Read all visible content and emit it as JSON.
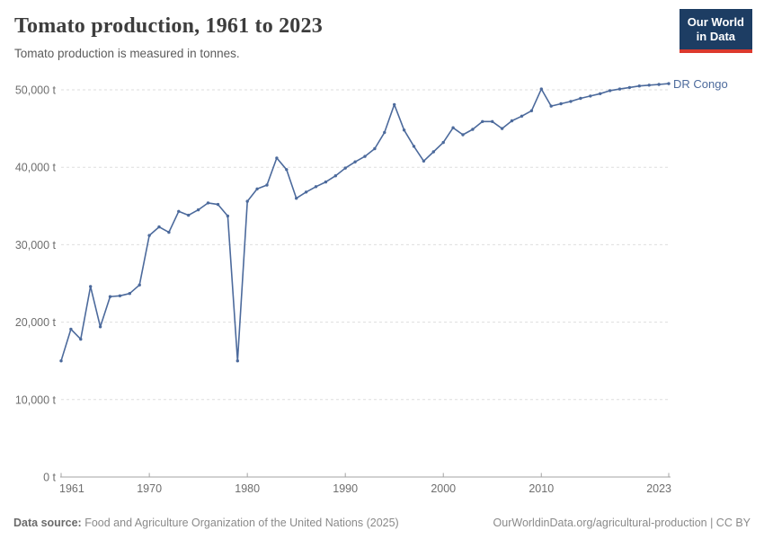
{
  "header": {
    "title": "Tomato production, 1961 to 2023",
    "subtitle": "Tomato production is measured in tonnes."
  },
  "logo": {
    "line1": "Our World",
    "line2": "in Data",
    "bg_color": "#1d3d63",
    "accent_color": "#dc392d"
  },
  "chart_data": {
    "type": "line",
    "title": "Tomato production, 1961 to 2023",
    "subtitle": "Tomato production is measured in tonnes.",
    "unit": "t",
    "grid": "horizontal-dashed",
    "legend_position": "end-of-line",
    "ylim": [
      0,
      50000
    ],
    "xlim": [
      1961,
      2023
    ],
    "x": [
      1961,
      1962,
      1963,
      1964,
      1965,
      1966,
      1967,
      1968,
      1969,
      1970,
      1971,
      1972,
      1973,
      1974,
      1975,
      1976,
      1977,
      1978,
      1979,
      1980,
      1981,
      1982,
      1983,
      1984,
      1985,
      1986,
      1987,
      1988,
      1989,
      1990,
      1991,
      1992,
      1993,
      1994,
      1995,
      1996,
      1997,
      1998,
      1999,
      2000,
      2001,
      2002,
      2003,
      2004,
      2005,
      2006,
      2007,
      2008,
      2009,
      2010,
      2011,
      2012,
      2013,
      2014,
      2015,
      2016,
      2017,
      2018,
      2019,
      2020,
      2021,
      2022,
      2023
    ],
    "series": [
      {
        "name": "DR Congo",
        "color": "#4C6A9C",
        "values": [
          15000,
          19100,
          17800,
          24600,
          19400,
          23300,
          23400,
          23700,
          24800,
          31200,
          32300,
          31600,
          34300,
          33800,
          34500,
          35400,
          35200,
          33700,
          15000,
          35600,
          37200,
          37700,
          41200,
          39700,
          36000,
          36800,
          37500,
          38100,
          38900,
          39900,
          40700,
          41400,
          42400,
          44500,
          48100,
          44800,
          42700,
          40800,
          42000,
          43200,
          45100,
          44200,
          44900,
          45900,
          45900,
          45000,
          46000,
          46600,
          47300,
          50100,
          47900,
          48200,
          48500,
          48900,
          49200,
          49500,
          49900,
          50100,
          50300,
          50500,
          50600,
          50700,
          50800
        ]
      }
    ],
    "yticks": [
      {
        "value": 0,
        "label": "0 t"
      },
      {
        "value": 10000,
        "label": "10,000 t"
      },
      {
        "value": 20000,
        "label": "20,000 t"
      },
      {
        "value": 30000,
        "label": "30,000 t"
      },
      {
        "value": 40000,
        "label": "40,000 t"
      },
      {
        "value": 50000,
        "label": "50,000 t"
      }
    ],
    "xticks": [
      {
        "value": 1961,
        "label": "1961"
      },
      {
        "value": 1970,
        "label": "1970"
      },
      {
        "value": 1980,
        "label": "1980"
      },
      {
        "value": 1990,
        "label": "1990"
      },
      {
        "value": 2000,
        "label": "2000"
      },
      {
        "value": 2010,
        "label": "2010"
      },
      {
        "value": 2023,
        "label": "2023"
      }
    ]
  },
  "footer": {
    "source_label": "Data source:",
    "source_text": " Food and Agriculture Organization of the United Nations (2025)",
    "right_text": "OurWorldinData.org/agricultural-production | CC BY"
  }
}
